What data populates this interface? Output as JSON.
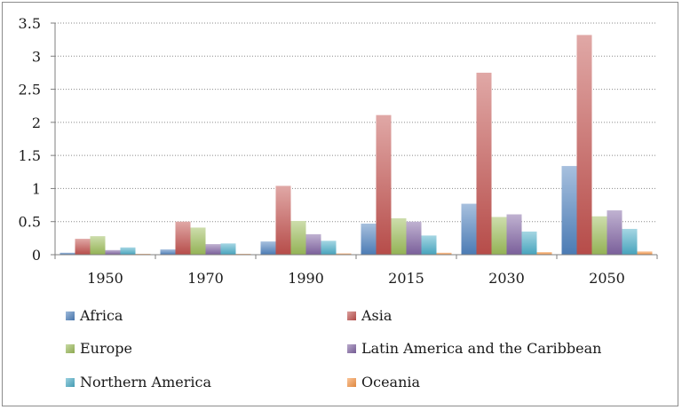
{
  "chart_data": {
    "type": "bar",
    "categories": [
      "1950",
      "1970",
      "1990",
      "2015",
      "2030",
      "2050"
    ],
    "series": [
      {
        "name": "Africa",
        "color": "#4f81bd",
        "values": [
          0.03,
          0.08,
          0.2,
          0.47,
          0.77,
          1.34
        ]
      },
      {
        "name": "Asia",
        "color": "#c0504d",
        "values": [
          0.24,
          0.5,
          1.04,
          2.11,
          2.75,
          3.32
        ]
      },
      {
        "name": "Europe",
        "color": "#9bbb59",
        "values": [
          0.28,
          0.41,
          0.51,
          0.55,
          0.57,
          0.58
        ]
      },
      {
        "name": "Latin America and the Caribbean",
        "color": "#8064a2",
        "values": [
          0.07,
          0.16,
          0.31,
          0.5,
          0.61,
          0.67
        ]
      },
      {
        "name": "Northern America",
        "color": "#4bacc6",
        "values": [
          0.11,
          0.17,
          0.21,
          0.29,
          0.35,
          0.39
        ]
      },
      {
        "name": "Oceania",
        "color": "#f79646",
        "values": [
          0.01,
          0.01,
          0.02,
          0.03,
          0.04,
          0.05
        ]
      }
    ],
    "yticks": [
      "0",
      "0.5",
      "1",
      "1.5",
      "2",
      "2.5",
      "3",
      "3.5"
    ],
    "ylim": [
      0,
      3.5
    ],
    "grid": true,
    "legend_position": "bottom"
  }
}
